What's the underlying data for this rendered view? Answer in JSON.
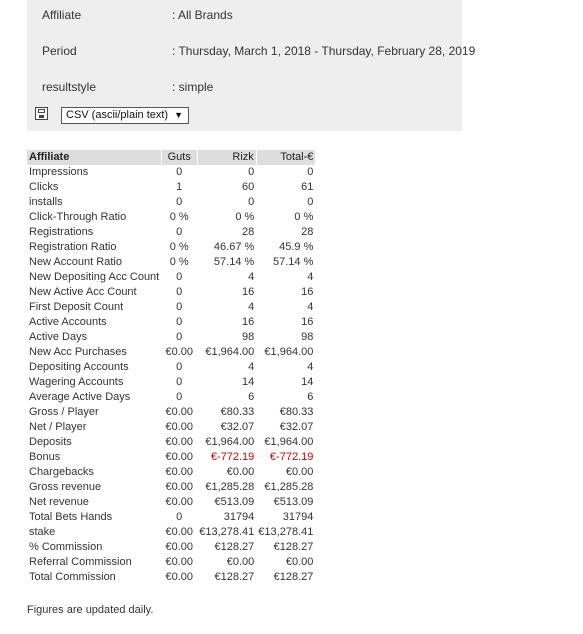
{
  "params": [
    {
      "key": "Affiliate",
      "value": ": All Brands"
    },
    {
      "key": "Period",
      "value": ": Thursday, March 1, 2018 - Thursday, February 28, 2019"
    },
    {
      "key": "resultstyle",
      "value": ": simple"
    }
  ],
  "export": {
    "icon": "save-icon",
    "format": "CSV (ascii/plain text)"
  },
  "table": {
    "headers": [
      "Affiliate",
      "Guts",
      "Rizk",
      "Total-€"
    ],
    "rows": [
      {
        "label": "Impressions",
        "cells": [
          "0",
          "0",
          "0"
        ]
      },
      {
        "label": "Clicks",
        "cells": [
          "1",
          "60",
          "61"
        ]
      },
      {
        "label": "installs",
        "cells": [
          "0",
          "0",
          "0"
        ]
      },
      {
        "label": "Click-Through Ratio",
        "cells": [
          "0 %",
          "0 %",
          "0 %"
        ]
      },
      {
        "label": "Registrations",
        "cells": [
          "0",
          "28",
          "28"
        ]
      },
      {
        "label": "Registration Ratio",
        "cells": [
          "0 %",
          "46.67 %",
          "45.9 %"
        ]
      },
      {
        "label": "New Account Ratio",
        "cells": [
          "0 %",
          "57.14 %",
          "57.14 %"
        ]
      },
      {
        "label": "New Depositing Acc Count",
        "cells": [
          "0",
          "4",
          "4"
        ]
      },
      {
        "label": "New Active Acc Count",
        "cells": [
          "0",
          "16",
          "16"
        ]
      },
      {
        "label": "First Deposit Count",
        "cells": [
          "0",
          "4",
          "4"
        ]
      },
      {
        "label": "Active Accounts",
        "cells": [
          "0",
          "16",
          "16"
        ]
      },
      {
        "label": "Active Days",
        "cells": [
          "0",
          "98",
          "98"
        ]
      },
      {
        "label": "New Acc Purchases",
        "cells": [
          "€0.00",
          "€1,964.00",
          "€1,964.00"
        ]
      },
      {
        "label": "Depositing Accounts",
        "cells": [
          "0",
          "4",
          "4"
        ]
      },
      {
        "label": "Wagering Accounts",
        "cells": [
          "0",
          "14",
          "14"
        ]
      },
      {
        "label": "Average Active Days",
        "cells": [
          "0",
          "6",
          "6"
        ]
      },
      {
        "label": "Gross / Player",
        "cells": [
          "€0.00",
          "€80.33",
          "€80.33"
        ]
      },
      {
        "label": "Net / Player",
        "cells": [
          "€0.00",
          "€32.07",
          "€32.07"
        ]
      },
      {
        "label": "Deposits",
        "cells": [
          "€0.00",
          "€1,964.00",
          "€1,964.00"
        ]
      },
      {
        "label": "Bonus",
        "cells": [
          "€0.00",
          "€-772.19",
          "€-772.19"
        ],
        "negative": [
          false,
          true,
          true
        ]
      },
      {
        "label": "Chargebacks",
        "cells": [
          "€0.00",
          "€0.00",
          "€0.00"
        ]
      },
      {
        "label": "Gross revenue",
        "cells": [
          "€0.00",
          "€1,285.28",
          "€1,285.28"
        ]
      },
      {
        "label": "Net revenue",
        "cells": [
          "€0.00",
          "€513.09",
          "€513.09"
        ]
      },
      {
        "label": "Total Bets Hands",
        "cells": [
          "0",
          "31794",
          "31794"
        ]
      },
      {
        "label": "stake",
        "cells": [
          "€0.00",
          "€13,278.41",
          "€13,278.41"
        ]
      },
      {
        "label": "% Commission",
        "cells": [
          "€0.00",
          "€128.27",
          "€128.27"
        ]
      },
      {
        "label": "Referral Commission",
        "cells": [
          "€0.00",
          "€0.00",
          "€0.00"
        ]
      },
      {
        "label": "Total Commission",
        "cells": [
          "€0.00",
          "€128.27",
          "€128.27"
        ]
      }
    ]
  },
  "footer": "Figures are updated daily.",
  "colors": {
    "negative": "#cc0000",
    "header_bg": "#dddddd",
    "params_bg": "#eeeeee"
  }
}
